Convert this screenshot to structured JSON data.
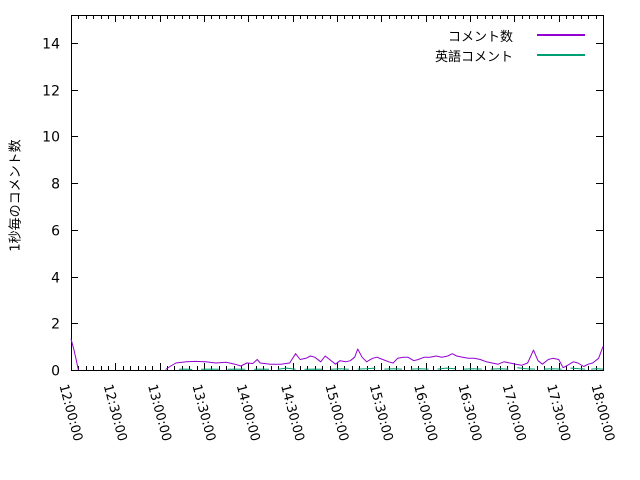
{
  "chart_data": {
    "type": "line",
    "title": "",
    "xlabel": "",
    "ylabel": "1秒毎のコメント数",
    "x_tick_labels": [
      "12:00:00",
      "12:30:00",
      "13:00:00",
      "13:30:00",
      "14:00:00",
      "14:30:00",
      "15:00:00",
      "15:30:00",
      "16:00:00",
      "16:30:00",
      "17:00:00",
      "17:30:00",
      "18:00:00"
    ],
    "x_range_minutes": [
      0,
      360
    ],
    "x_major_tick_minutes": 30,
    "x_minor_tick_minutes": 5,
    "y_ticks": [
      0,
      2,
      4,
      6,
      8,
      10,
      12,
      14
    ],
    "ylim": [
      0,
      15.2
    ],
    "grid": false,
    "legend_position": "top-right-inside",
    "series": [
      {
        "name": "コメント数",
        "color": "#9400d3",
        "points": [
          [
            0,
            1.33
          ],
          [
            2,
            0.85
          ],
          [
            4,
            0.3
          ],
          [
            5,
            0
          ],
          null,
          [
            64,
            0.02
          ],
          [
            67,
            0.15
          ],
          [
            71,
            0.3
          ],
          [
            78,
            0.35
          ],
          [
            84,
            0.37
          ],
          [
            91,
            0.35
          ],
          [
            98,
            0.3
          ],
          [
            105,
            0.33
          ],
          [
            111,
            0.25
          ],
          [
            115,
            0.17
          ],
          [
            119,
            0.3
          ],
          [
            123,
            0.28
          ],
          [
            126,
            0.45
          ],
          [
            128,
            0.3
          ],
          [
            135,
            0.25
          ],
          [
            142,
            0.25
          ],
          [
            148,
            0.3
          ],
          [
            152,
            0.7
          ],
          [
            155,
            0.45
          ],
          [
            159,
            0.5
          ],
          [
            162,
            0.6
          ],
          [
            165,
            0.55
          ],
          [
            169,
            0.35
          ],
          [
            172,
            0.6
          ],
          [
            175,
            0.45
          ],
          [
            179,
            0.25
          ],
          [
            182,
            0.4
          ],
          [
            186,
            0.35
          ],
          [
            189,
            0.4
          ],
          [
            192,
            0.55
          ],
          [
            194,
            0.9
          ],
          [
            197,
            0.55
          ],
          [
            200,
            0.35
          ],
          [
            204,
            0.5
          ],
          [
            207,
            0.55
          ],
          [
            211,
            0.45
          ],
          [
            215,
            0.35
          ],
          [
            218,
            0.3
          ],
          [
            221,
            0.5
          ],
          [
            225,
            0.55
          ],
          [
            228,
            0.55
          ],
          [
            232,
            0.4
          ],
          [
            235,
            0.45
          ],
          [
            239,
            0.55
          ],
          [
            243,
            0.55
          ],
          [
            247,
            0.6
          ],
          [
            251,
            0.55
          ],
          [
            255,
            0.6
          ],
          [
            258,
            0.7
          ],
          [
            261,
            0.6
          ],
          [
            265,
            0.55
          ],
          [
            269,
            0.5
          ],
          [
            273,
            0.5
          ],
          [
            277,
            0.45
          ],
          [
            281,
            0.35
          ],
          [
            285,
            0.3
          ],
          [
            289,
            0.25
          ],
          [
            293,
            0.35
          ],
          [
            297,
            0.3
          ],
          [
            301,
            0.25
          ],
          [
            305,
            0.2
          ],
          [
            309,
            0.3
          ],
          [
            313,
            0.85
          ],
          [
            316,
            0.4
          ],
          [
            319,
            0.25
          ],
          [
            323,
            0.45
          ],
          [
            326,
            0.5
          ],
          [
            330,
            0.45
          ],
          [
            333,
            0.1
          ],
          [
            336,
            0.2
          ],
          [
            340,
            0.35
          ],
          [
            343,
            0.3
          ],
          [
            347,
            0.15
          ],
          [
            350,
            0.25
          ],
          [
            353,
            0.3
          ],
          [
            357,
            0.5
          ],
          [
            360,
            1.0
          ]
        ]
      },
      {
        "name": "英語コメント",
        "color": "#009e73",
        "points": [
          [
            73,
            0.03
          ],
          [
            78,
            0.04
          ],
          [
            82,
            0.02
          ],
          null,
          [
            88,
            0.03
          ],
          [
            94,
            0.04
          ],
          [
            100,
            0.03
          ],
          null,
          [
            106,
            0.03
          ],
          [
            112,
            0.04
          ],
          [
            118,
            0.03
          ],
          null,
          [
            124,
            0.03
          ],
          [
            130,
            0.04
          ],
          [
            134,
            0.03
          ],
          null,
          [
            140,
            0.03
          ],
          [
            146,
            0.08
          ],
          [
            152,
            0.03
          ],
          null,
          [
            158,
            0.03
          ],
          [
            164,
            0.04
          ],
          [
            170,
            0.03
          ],
          null,
          [
            176,
            0.03
          ],
          [
            182,
            0.05
          ],
          [
            188,
            0.03
          ],
          null,
          [
            194,
            0.04
          ],
          [
            200,
            0.05
          ],
          [
            206,
            0.08
          ],
          null,
          [
            212,
            0.04
          ],
          [
            218,
            0.05
          ],
          [
            224,
            0.04
          ],
          null,
          [
            230,
            0.04
          ],
          [
            236,
            0.05
          ],
          [
            242,
            0.04
          ],
          null,
          [
            248,
            0.04
          ],
          [
            254,
            0.08
          ],
          [
            260,
            0.05
          ],
          null,
          [
            266,
            0.04
          ],
          [
            272,
            0.05
          ],
          [
            278,
            0.04
          ],
          null,
          [
            284,
            0.04
          ],
          [
            290,
            0.05
          ],
          [
            296,
            0.04
          ],
          null,
          [
            302,
            0.1
          ],
          [
            308,
            0.05
          ],
          [
            314,
            0.04
          ],
          null,
          [
            320,
            0.04
          ],
          [
            326,
            0.05
          ],
          [
            332,
            0.04
          ],
          null,
          [
            338,
            0.08
          ],
          [
            344,
            0.05
          ],
          [
            348,
            0.04
          ],
          null,
          [
            352,
            0.04
          ],
          [
            356,
            0.05
          ],
          [
            360,
            0.04
          ]
        ]
      }
    ]
  },
  "colors": {
    "background": "#ffffff",
    "axis": "#000000",
    "text": "#000000",
    "series1": "#9400d3",
    "series2": "#009e73"
  }
}
